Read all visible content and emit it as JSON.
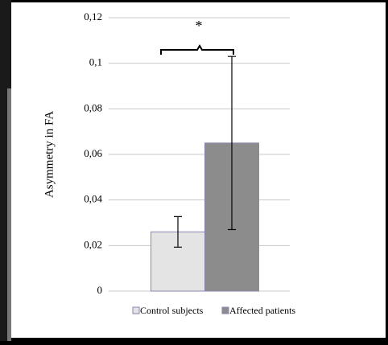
{
  "chart_data": {
    "type": "bar",
    "y_label": "Asymmetry in FA",
    "annotation": "*",
    "categories": [
      null
    ],
    "series": [
      {
        "name": "Control subjects",
        "color": "#e4e4e4",
        "values": [
          0.026
        ],
        "errors": [
          0.0067
        ]
      },
      {
        "name": "Affected patients",
        "color": "#8c8c8c",
        "values": [
          0.065
        ],
        "errors": [
          0.038
        ]
      }
    ],
    "ylim": [
      0,
      0.12
    ],
    "yticks": [
      0,
      {
        "value": 0.02,
        "label": "0,02"
      },
      {
        "value": 0.04,
        "label": "0,04"
      },
      {
        "value": 0.06,
        "label": "0,06"
      },
      {
        "value": 0.08,
        "label": "0,08"
      },
      {
        "value": 0.1,
        "label": "0,1"
      },
      {
        "value": 0.12,
        "label": "0,12"
      }
    ],
    "grid": true,
    "legend": "bottom"
  }
}
